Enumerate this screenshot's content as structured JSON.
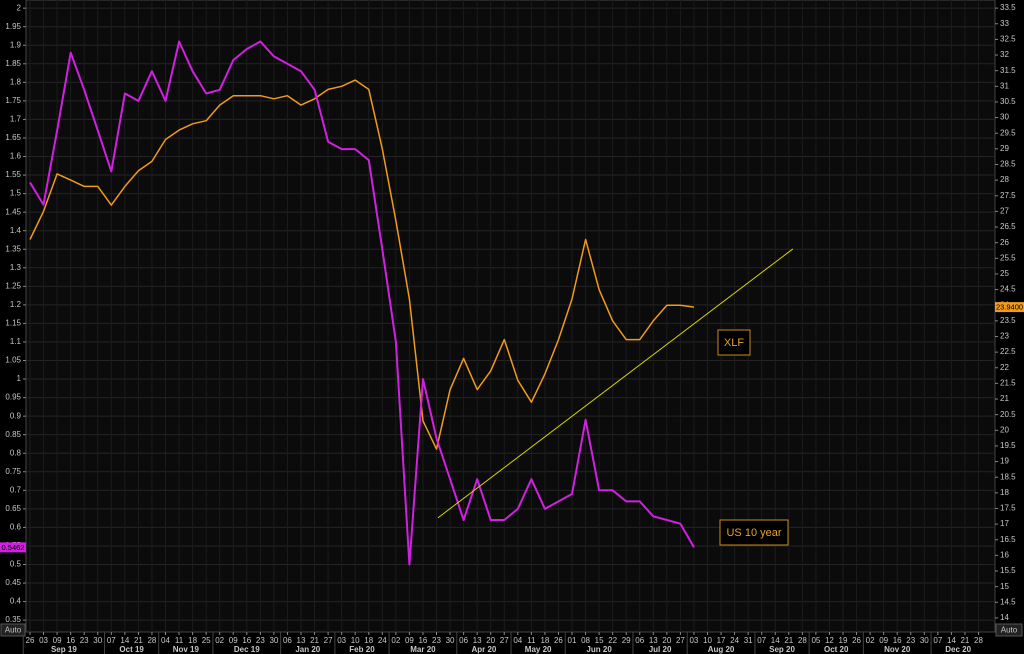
{
  "chart_data": {
    "type": "line",
    "axis_mode_label": "Auto",
    "x_axis": {
      "months": [
        {
          "label": "Sep 19",
          "days": [
            "26",
            "03",
            "09",
            "16",
            "23",
            "30"
          ]
        },
        {
          "label": "Oct 19",
          "days": [
            "07",
            "14",
            "21",
            "28"
          ]
        },
        {
          "label": "Nov 19",
          "days": [
            "04",
            "11",
            "18",
            "25"
          ]
        },
        {
          "label": "Dec 19",
          "days": [
            "02",
            "09",
            "16",
            "23",
            "30"
          ]
        },
        {
          "label": "Jan 20",
          "days": [
            "06",
            "13",
            "21",
            "27"
          ]
        },
        {
          "label": "Feb 20",
          "days": [
            "03",
            "10",
            "18",
            "24"
          ]
        },
        {
          "label": "Mar 20",
          "days": [
            "02",
            "09",
            "16",
            "23",
            "30"
          ]
        },
        {
          "label": "Apr 20",
          "days": [
            "06",
            "13",
            "20",
            "27"
          ]
        },
        {
          "label": "May 20",
          "days": [
            "04",
            "11",
            "18",
            "26"
          ]
        },
        {
          "label": "Jun 20",
          "days": [
            "01",
            "08",
            "15",
            "22",
            "29"
          ]
        },
        {
          "label": "Jul 20",
          "days": [
            "06",
            "13",
            "20",
            "27"
          ]
        },
        {
          "label": "Aug 20",
          "days": [
            "03",
            "10",
            "17",
            "24",
            "31"
          ]
        },
        {
          "label": "Sep 20",
          "days": [
            "07",
            "14",
            "21",
            "28"
          ]
        },
        {
          "label": "Oct 20",
          "days": [
            "05",
            "12",
            "19",
            "26"
          ]
        },
        {
          "label": "Nov 20",
          "days": [
            "02",
            "09",
            "16",
            "23",
            "30"
          ]
        },
        {
          "label": "Dec 20",
          "days": [
            "07",
            "14",
            "21",
            "28"
          ]
        }
      ]
    },
    "ylim": [
      0.318,
      2.022
    ],
    "yticks": [
      0.35,
      0.4,
      0.45,
      0.5,
      0.55,
      0.6,
      0.65,
      0.7,
      0.75,
      0.8,
      0.85,
      0.9,
      0.95,
      1,
      1.05,
      1.1,
      1.15,
      1.2,
      1.25,
      1.3,
      1.35,
      1.4,
      1.45,
      1.5,
      1.55,
      1.6,
      1.65,
      1.7,
      1.75,
      1.8,
      1.85,
      1.9,
      1.95,
      2
    ],
    "y2lim": [
      13.55,
      33.76
    ],
    "y2ticks": [
      14,
      14.5,
      15,
      15.5,
      16,
      16.5,
      17,
      17.5,
      18,
      18.5,
      19,
      19.5,
      20,
      20.5,
      21,
      21.5,
      22,
      22.5,
      23,
      23.5,
      24,
      24.5,
      25,
      25.5,
      26,
      26.5,
      27,
      27.5,
      28,
      28.5,
      29,
      29.5,
      30,
      30.5,
      31,
      31.5,
      32,
      32.5,
      33,
      33.5
    ],
    "grid": true,
    "series": [
      {
        "name": "US 10 year",
        "color": "#d020e0",
        "axis": "y",
        "last_label": "0.5462",
        "values": [
          1.53,
          1.47,
          1.67,
          1.88,
          1.78,
          1.67,
          1.56,
          1.77,
          1.75,
          1.83,
          1.75,
          1.91,
          1.83,
          1.77,
          1.78,
          1.86,
          1.89,
          1.91,
          1.87,
          1.85,
          1.83,
          1.78,
          1.64,
          1.62,
          1.62,
          1.59,
          1.35,
          1.1,
          0.5,
          1.0,
          0.84,
          0.73,
          0.62,
          0.73,
          0.62,
          0.62,
          0.65,
          0.73,
          0.65,
          0.67,
          0.69,
          0.89,
          0.7,
          0.7,
          0.67,
          0.67,
          0.63,
          0.62,
          0.61,
          0.5462,
          null,
          null,
          null,
          null,
          null,
          null,
          null,
          null,
          null,
          null,
          null,
          null,
          null,
          null,
          null,
          null,
          null,
          null,
          null,
          null,
          null
        ]
      },
      {
        "name": "XLF",
        "color": "#f09a1e",
        "axis": "y2",
        "last_label": "23.9400",
        "values": [
          26.1,
          27.0,
          28.2,
          28.0,
          27.8,
          27.8,
          27.2,
          27.8,
          28.3,
          28.6,
          29.3,
          29.6,
          29.8,
          29.9,
          30.4,
          30.7,
          30.7,
          30.7,
          30.6,
          30.7,
          30.4,
          30.6,
          30.9,
          31.0,
          31.2,
          30.9,
          29.0,
          26.7,
          24.2,
          20.3,
          19.4,
          21.3,
          22.3,
          21.3,
          21.9,
          22.9,
          21.6,
          20.9,
          21.8,
          22.9,
          24.2,
          26.1,
          24.5,
          23.5,
          22.9,
          22.9,
          23.5,
          24.0,
          24.0,
          23.94,
          null,
          null,
          null,
          null,
          null,
          null,
          null,
          null,
          null,
          null,
          null,
          null,
          null,
          null,
          null,
          null,
          null,
          null,
          null,
          null,
          null
        ]
      }
    ],
    "trendline": {
      "color": "#d4d400",
      "axis": "y2",
      "x": [
        30.1,
        56.3
      ],
      "values": [
        17.2,
        25.8
      ]
    }
  }
}
